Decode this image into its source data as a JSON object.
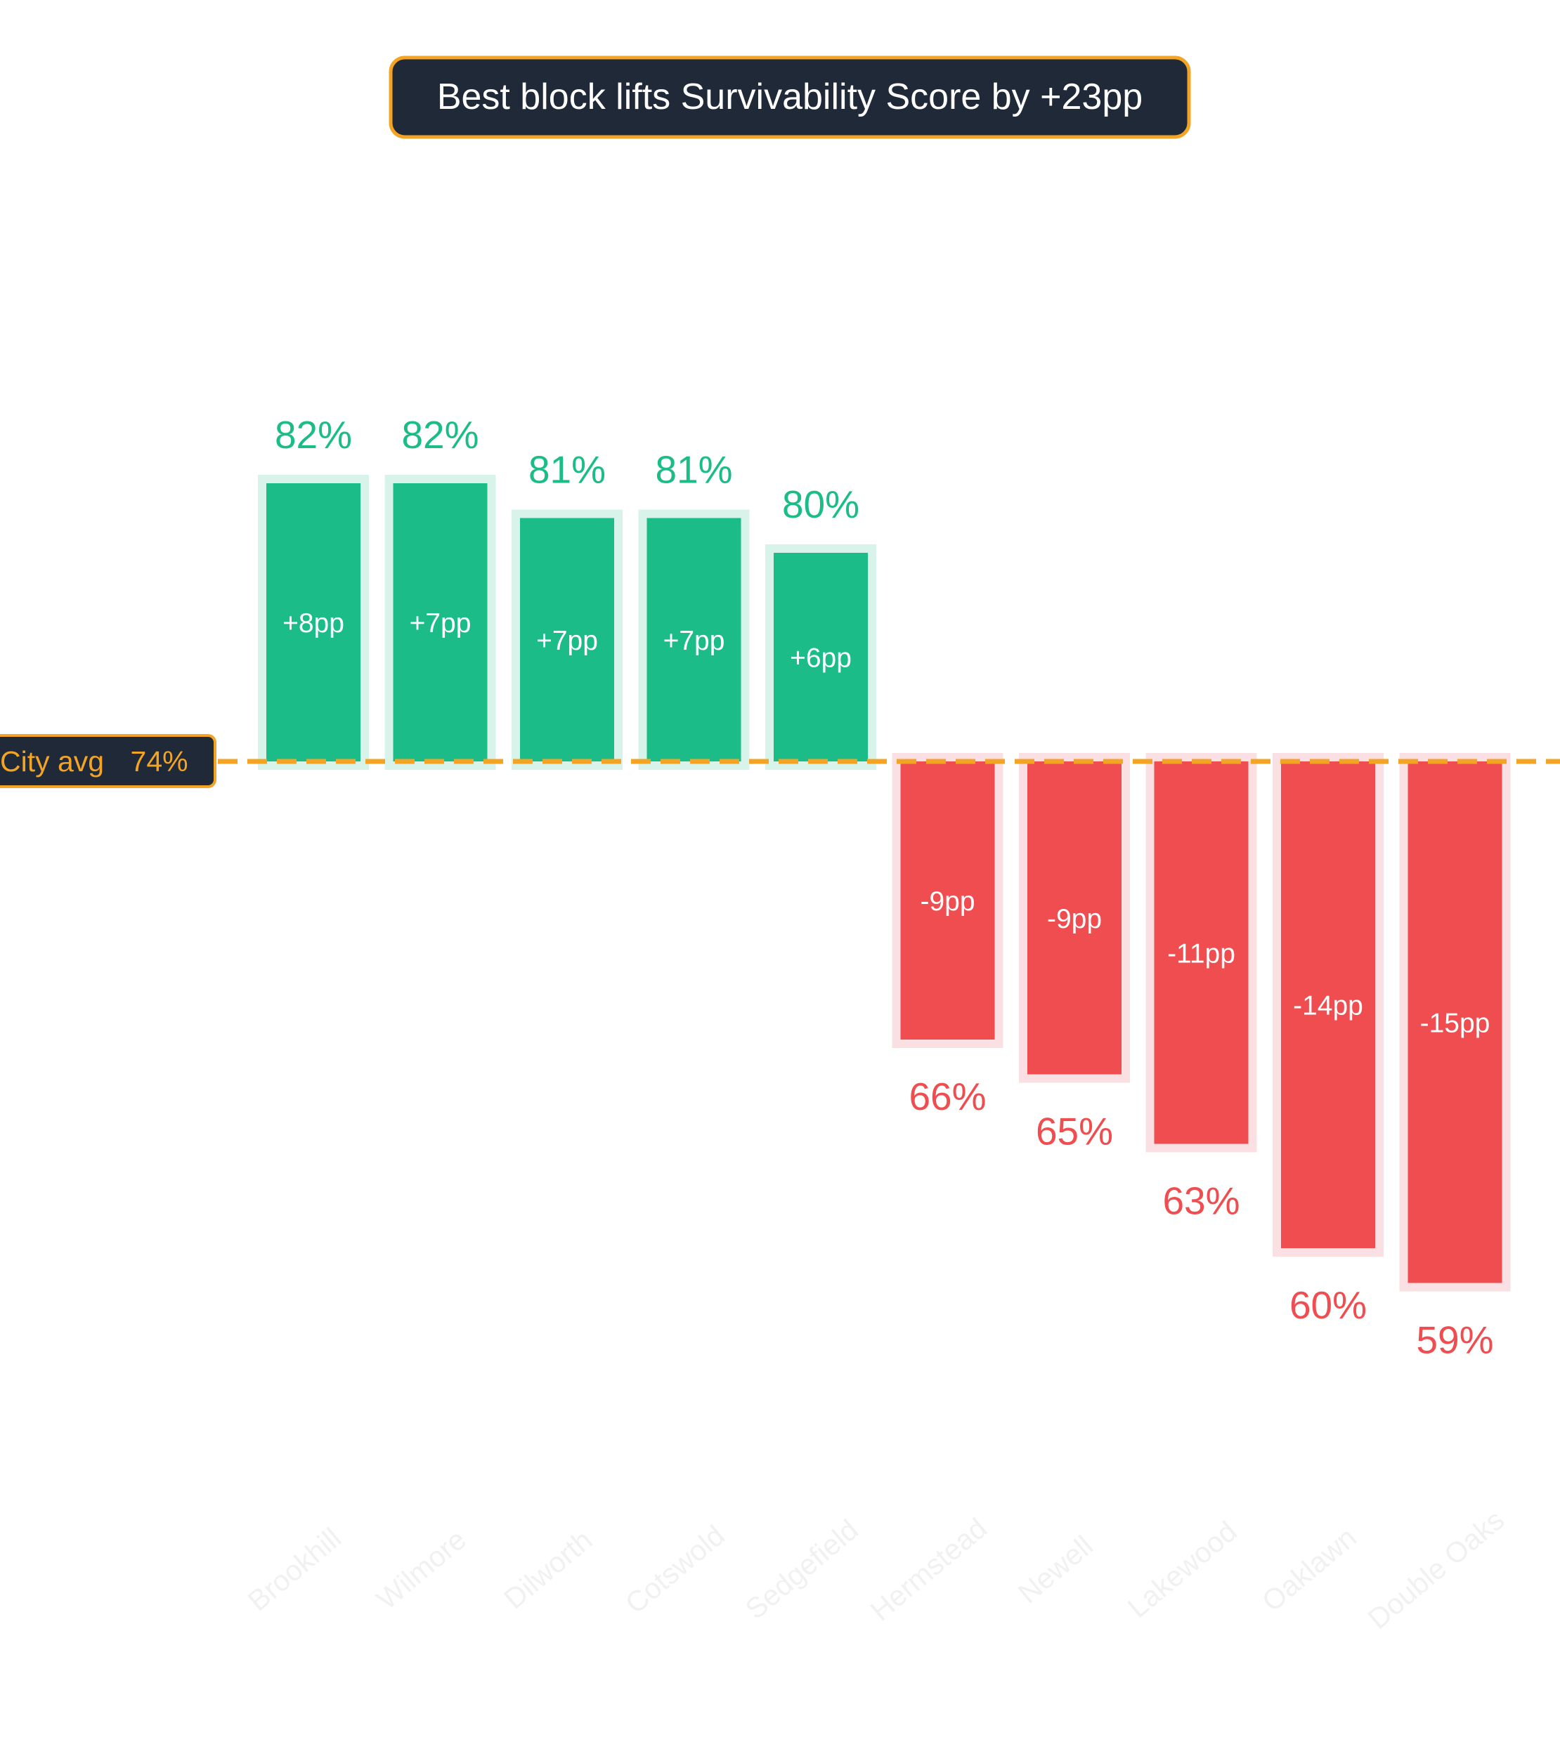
{
  "chart_data": {
    "type": "bar",
    "title": "Best block lifts Survivability Score by +23pp",
    "baseline": {
      "label": "City avg",
      "value_label": "74%",
      "value": 74
    },
    "categories": [
      "Brookhill",
      "Wilmore",
      "Dilworth",
      "Cotswold",
      "Sedgefield",
      "Hermstead",
      "Newell",
      "Lakewood",
      "Oaklawn",
      "Double Oaks"
    ],
    "values": [
      82,
      82,
      81,
      81,
      80,
      66,
      65,
      63,
      60,
      59
    ],
    "value_labels": [
      "82%",
      "82%",
      "81%",
      "81%",
      "80%",
      "66%",
      "65%",
      "63%",
      "60%",
      "59%"
    ],
    "delta_labels": [
      "+8pp",
      "+7pp",
      "+7pp",
      "+7pp",
      "+6pp",
      "-9pp",
      "-9pp",
      "-11pp",
      "-14pp",
      "-15pp"
    ],
    "ylim": [
      52,
      90
    ],
    "grid": false,
    "legend": "none",
    "colors": {
      "positive": "#1cbc88",
      "positive_halo": "#d8f3ea",
      "negative": "#ef4d4f",
      "negative_halo": "#fbe0e3",
      "accent": "#f3a424",
      "title_bg": "#1f2937"
    }
  }
}
